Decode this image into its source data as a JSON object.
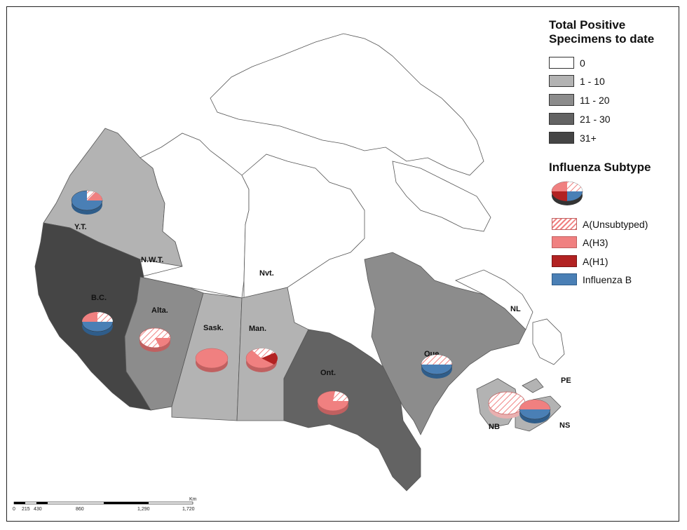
{
  "legend": {
    "total_title_line1": "Total Positive",
    "total_title_line2": "Specimens to date",
    "classes": [
      {
        "label": "0",
        "color": "#ffffff"
      },
      {
        "label": "1 - 10",
        "color": "#b3b3b3"
      },
      {
        "label": "11 - 20",
        "color": "#8c8c8c"
      },
      {
        "label": "21 - 30",
        "color": "#636363"
      },
      {
        "label": "31+",
        "color": "#454545"
      }
    ],
    "subtype_title": "Influenza Subtype",
    "subtypes": [
      {
        "label": "A(Unsubtyped)",
        "color": "#f08080",
        "pattern": "hatch"
      },
      {
        "label": "A(H3)",
        "color": "#f08080",
        "pattern": "solid"
      },
      {
        "label": "A(H1)",
        "color": "#b22222",
        "pattern": "solid"
      },
      {
        "label": "Influenza B",
        "color": "#4a7fb5",
        "pattern": "solid"
      }
    ]
  },
  "regions": {
    "yt": "Y.T.",
    "nwt": "N.W.T.",
    "nvt": "Nvt.",
    "bc": "B.C.",
    "alta": "Alta.",
    "sask": "Sask.",
    "man": "Man.",
    "ont": "Ont.",
    "que": "Que.",
    "nl": "NL",
    "pe": "PE",
    "nb": "NB",
    "ns": "NS"
  },
  "scale_bar": {
    "unit": "Km",
    "ticks": [
      "0",
      "215",
      "430",
      "860",
      "1,290",
      "1,720"
    ]
  }
}
